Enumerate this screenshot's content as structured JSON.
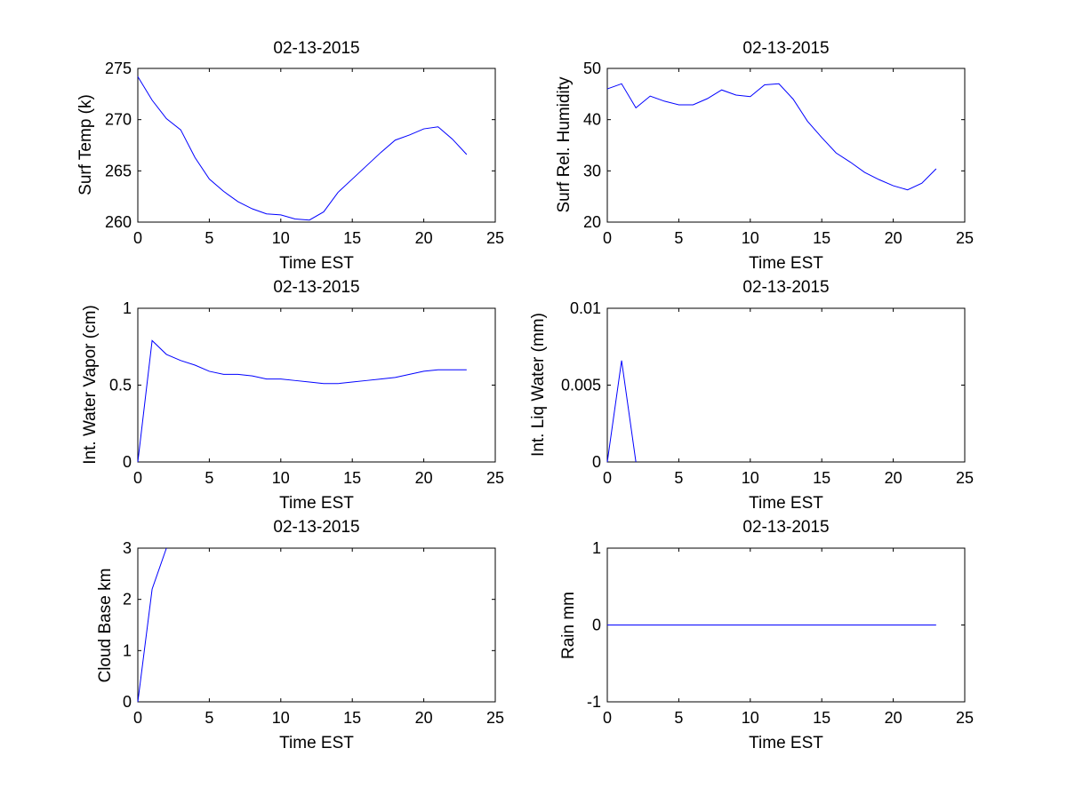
{
  "colors": {
    "line": "#0000ff",
    "axes": "#000000",
    "background": "#ffffff"
  },
  "chart_data": [
    {
      "type": "line",
      "title": "02-13-2015",
      "xlabel": "Time EST",
      "ylabel": "Surf Temp (k)",
      "xlim": [
        0,
        25
      ],
      "ylim": [
        260,
        275
      ],
      "xticks": [
        0,
        5,
        10,
        15,
        20,
        25
      ],
      "yticks": [
        260,
        265,
        270,
        275
      ],
      "x": [
        0,
        1,
        2,
        3,
        4,
        5,
        6,
        7,
        8,
        9,
        10,
        11,
        12,
        13,
        14,
        15,
        16,
        17,
        18,
        19,
        20,
        21,
        22,
        23
      ],
      "y": [
        274.2,
        271.9,
        270.1,
        269.0,
        266.3,
        264.2,
        263.0,
        262.0,
        261.3,
        260.8,
        260.7,
        260.3,
        260.2,
        261.0,
        262.9,
        264.2,
        265.5,
        266.8,
        268.0,
        268.5,
        269.1,
        269.3,
        268.1,
        266.6
      ]
    },
    {
      "type": "line",
      "title": "02-13-2015",
      "xlabel": "Time EST",
      "ylabel": "Surf Rel. Humidity",
      "xlim": [
        0,
        25
      ],
      "ylim": [
        20,
        50
      ],
      "xticks": [
        0,
        5,
        10,
        15,
        20,
        25
      ],
      "yticks": [
        20,
        30,
        40,
        50
      ],
      "x": [
        0,
        1,
        2,
        3,
        4,
        5,
        6,
        7,
        8,
        9,
        10,
        11,
        12,
        13,
        14,
        15,
        16,
        17,
        18,
        19,
        20,
        21,
        22,
        23
      ],
      "y": [
        46.0,
        47.0,
        42.3,
        44.6,
        43.6,
        42.9,
        42.9,
        44.1,
        45.8,
        44.8,
        44.5,
        46.8,
        47.0,
        44.0,
        39.7,
        36.5,
        33.5,
        31.7,
        29.7,
        28.3,
        27.1,
        26.3,
        27.6,
        30.4
      ]
    },
    {
      "type": "line",
      "title": "02-13-2015",
      "xlabel": "Time EST",
      "ylabel": "Int. Water Vapor (cm)",
      "xlim": [
        0,
        25
      ],
      "ylim": [
        0,
        1
      ],
      "xticks": [
        0,
        5,
        10,
        15,
        20,
        25
      ],
      "yticks": [
        0,
        0.5,
        1
      ],
      "x": [
        0,
        1,
        2,
        3,
        4,
        5,
        6,
        7,
        8,
        9,
        10,
        11,
        12,
        13,
        14,
        15,
        16,
        17,
        18,
        19,
        20,
        21,
        22,
        23
      ],
      "y": [
        0.0,
        0.79,
        0.7,
        0.66,
        0.63,
        0.59,
        0.57,
        0.57,
        0.56,
        0.54,
        0.54,
        0.53,
        0.52,
        0.51,
        0.51,
        0.52,
        0.53,
        0.54,
        0.55,
        0.57,
        0.59,
        0.6,
        0.6,
        0.6
      ]
    },
    {
      "type": "line",
      "title": "02-13-2015",
      "xlabel": "Time EST",
      "ylabel": "Int. Liq Water (mm)",
      "xlim": [
        0,
        25
      ],
      "ylim": [
        0,
        0.01
      ],
      "xticks": [
        0,
        5,
        10,
        15,
        20,
        25
      ],
      "yticks": [
        0,
        0.005,
        0.01
      ],
      "x": [
        0,
        1,
        2
      ],
      "y": [
        0.0,
        0.0066,
        0.0
      ]
    },
    {
      "type": "line",
      "title": "02-13-2015",
      "xlabel": "Time EST",
      "ylabel": "Cloud Base km",
      "xlim": [
        0,
        25
      ],
      "ylim": [
        0,
        3
      ],
      "xticks": [
        0,
        5,
        10,
        15,
        20,
        25
      ],
      "yticks": [
        0,
        1,
        2,
        3
      ],
      "x": [
        0,
        1,
        2
      ],
      "y": [
        0.0,
        2.2,
        3.0
      ]
    },
    {
      "type": "line",
      "title": "02-13-2015",
      "xlabel": "Time EST",
      "ylabel": "Rain mm",
      "xlim": [
        0,
        25
      ],
      "ylim": [
        -1,
        1
      ],
      "xticks": [
        0,
        5,
        10,
        15,
        20,
        25
      ],
      "yticks": [
        -1,
        0,
        1
      ],
      "x": [
        0,
        23
      ],
      "y": [
        0,
        0
      ]
    }
  ]
}
